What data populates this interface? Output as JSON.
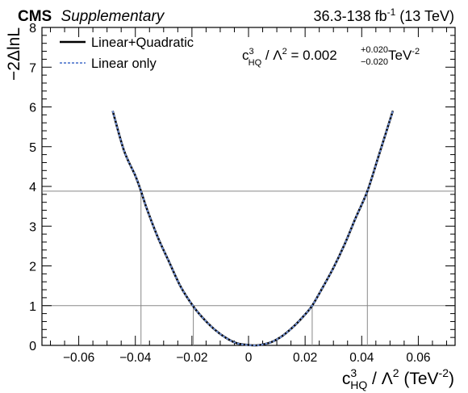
{
  "header": {
    "experiment": "CMS",
    "experiment_tag": "Supplementary",
    "lumi_main": "36.3-138 fb",
    "lumi_sup": "-1",
    "lumi_energy": " (13 TeV)"
  },
  "legend": {
    "placement": "top-left",
    "items": [
      {
        "label": "Linear+Quadratic",
        "color": "#000000",
        "style": "solid"
      },
      {
        "label": "Linear only",
        "color": "#6f8fd6",
        "style": "dashed"
      }
    ]
  },
  "result": {
    "c": "c",
    "c_sup": "3",
    "c_sub": "HQ",
    "mid": " / Λ",
    "lam_sup": "2",
    "value": " = 0.002 ",
    "err_up": "+0.020",
    "err_down": "−0.020",
    "unit": " TeV",
    "unit_sup": "-2"
  },
  "xaxis": {
    "label_c": "c",
    "label_c_sup": "3",
    "label_c_sub": "HQ",
    "label_mid": " / Λ",
    "label_lam_sup": "2",
    "label_unit": " (TeV",
    "label_unit_sup": "-2",
    "label_close": ")",
    "ticks": [
      "−0.06",
      "−0.04",
      "−0.02",
      "0",
      "0.02",
      "0.04",
      "0.06"
    ]
  },
  "yaxis": {
    "label": "−2ΔlnL",
    "ticks": [
      "0",
      "1",
      "2",
      "3",
      "4",
      "5",
      "6",
      "7",
      "8"
    ]
  },
  "chart_data": {
    "type": "line",
    "xlim": [
      -0.073,
      0.073
    ],
    "ylim": [
      0,
      8
    ],
    "x_ticks": [
      -0.06,
      -0.04,
      -0.02,
      0,
      0.02,
      0.04,
      0.06
    ],
    "y_ticks": [
      0,
      1,
      2,
      3,
      4,
      5,
      6,
      7,
      8
    ],
    "grid": false,
    "best_fit": 0.002,
    "thresholds": [
      1.0,
      3.88
    ],
    "crossings_1sigma": [
      -0.0195,
      0.0225
    ],
    "crossings_2sigma": [
      -0.038,
      0.042
    ],
    "series": [
      {
        "name": "Linear+Quadratic",
        "color": "#000000",
        "x": [
          -0.048,
          -0.044,
          -0.04,
          -0.038,
          -0.036,
          -0.032,
          -0.028,
          -0.024,
          -0.0195,
          -0.016,
          -0.012,
          -0.008,
          -0.004,
          0.0,
          0.002,
          0.004,
          0.008,
          0.012,
          0.016,
          0.02,
          0.0225,
          0.026,
          0.03,
          0.034,
          0.038,
          0.042,
          0.046,
          0.051
        ],
        "y": [
          5.9,
          4.9,
          4.27,
          3.88,
          3.45,
          2.71,
          2.09,
          1.48,
          0.98,
          0.68,
          0.4,
          0.19,
          0.05,
          0.01,
          0.0,
          0.01,
          0.08,
          0.24,
          0.48,
          0.78,
          1.0,
          1.43,
          1.95,
          2.55,
          3.23,
          3.88,
          4.77,
          5.9
        ]
      },
      {
        "name": "Linear only",
        "color": "#6f8fd6",
        "x": [
          -0.048,
          -0.044,
          -0.04,
          -0.038,
          -0.036,
          -0.032,
          -0.028,
          -0.024,
          -0.0195,
          -0.016,
          -0.012,
          -0.008,
          -0.004,
          0.0,
          0.002,
          0.004,
          0.008,
          0.012,
          0.016,
          0.02,
          0.0225,
          0.026,
          0.03,
          0.034,
          0.038,
          0.042,
          0.046,
          0.051
        ],
        "y": [
          5.9,
          4.9,
          4.27,
          3.88,
          3.45,
          2.71,
          2.09,
          1.48,
          0.98,
          0.68,
          0.4,
          0.19,
          0.05,
          0.01,
          0.0,
          0.01,
          0.08,
          0.24,
          0.48,
          0.78,
          1.0,
          1.43,
          1.95,
          2.55,
          3.23,
          3.88,
          4.77,
          5.9
        ]
      }
    ]
  }
}
